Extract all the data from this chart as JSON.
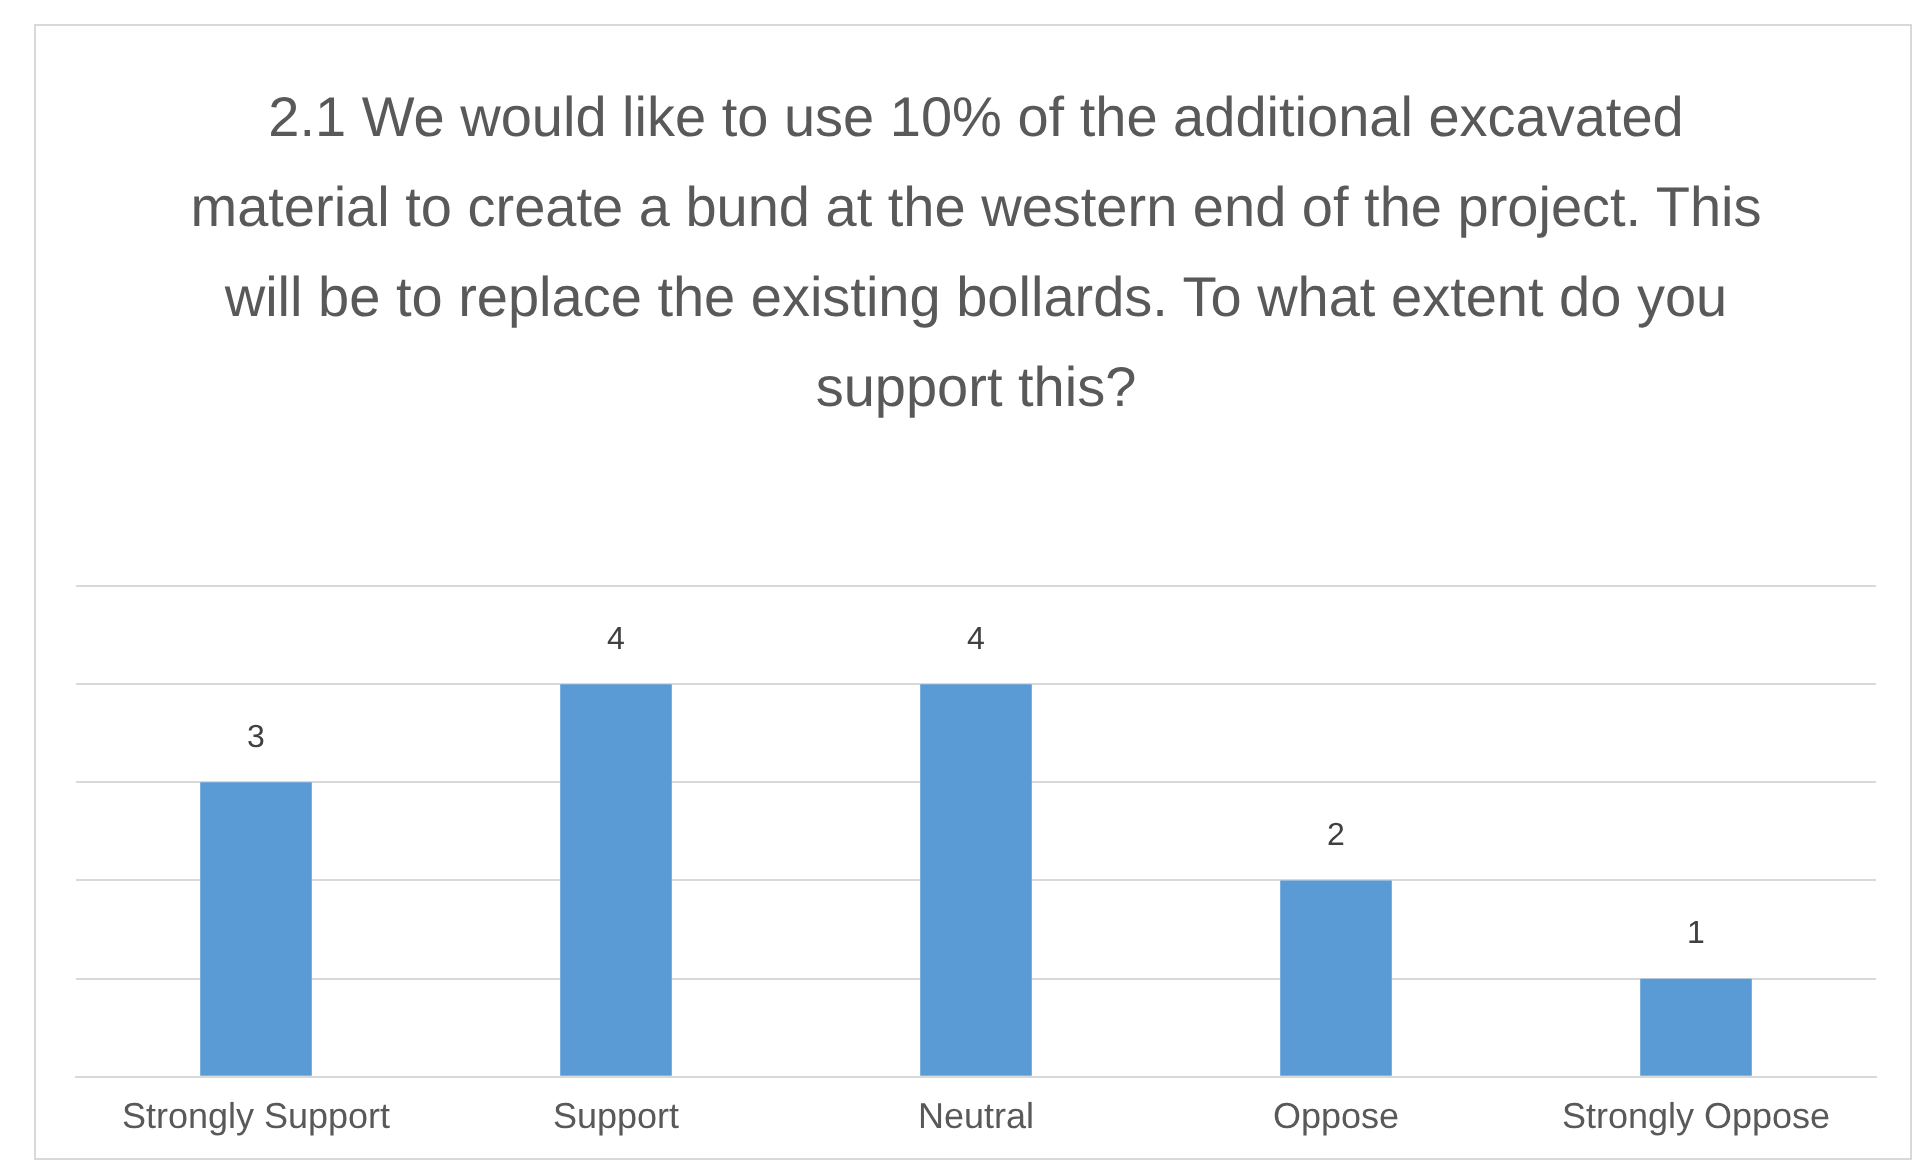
{
  "chart_data": {
    "type": "bar",
    "title": "2.1 We would like to use 10% of the additional excavated material to create a bund at the western end of the project. This will be to replace the existing bollards. To what extent do you support this?",
    "categories": [
      "Strongly Support",
      "Support",
      "Neutral",
      "Oppose",
      "Strongly Oppose"
    ],
    "values": [
      3,
      4,
      4,
      2,
      1
    ],
    "color": "#5b9bd5",
    "ylim": [
      0,
      5
    ],
    "yticks": [
      {
        "value": 0,
        "label": null
      },
      {
        "value": 1,
        "label": null
      },
      {
        "value": 2,
        "label": null
      },
      {
        "value": 3,
        "label": null
      },
      {
        "value": 4,
        "label": null
      },
      {
        "value": 5,
        "label": null
      }
    ],
    "grid": "y",
    "tick_labels": "x",
    "data_labels": true
  }
}
